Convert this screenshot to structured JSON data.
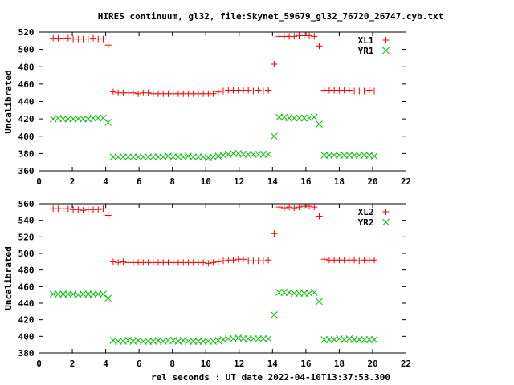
{
  "chart_data": [
    {
      "type": "scatter",
      "title": "HIRES continuum, gl32, file:Skynet_59679_gl32_76720_26747.cyb.txt",
      "xlabel": "",
      "ylabel": "Uncalibrated",
      "xlim": [
        0,
        22
      ],
      "ylim": [
        360,
        520
      ],
      "xticks": [
        0,
        2,
        4,
        6,
        8,
        10,
        12,
        14,
        16,
        18,
        20,
        22
      ],
      "yticks": [
        360,
        380,
        400,
        420,
        440,
        460,
        480,
        500,
        520
      ],
      "legend_position": "top-right",
      "x": [
        0.85,
        1.15,
        1.45,
        1.75,
        2.05,
        2.35,
        2.65,
        2.95,
        3.25,
        3.55,
        3.85,
        4.15,
        4.45,
        4.75,
        5.05,
        5.35,
        5.65,
        5.95,
        6.25,
        6.55,
        6.85,
        7.15,
        7.45,
        7.75,
        8.05,
        8.35,
        8.65,
        8.95,
        9.25,
        9.55,
        9.85,
        10.15,
        10.45,
        10.75,
        11.05,
        11.35,
        11.65,
        11.95,
        12.25,
        12.55,
        12.85,
        13.15,
        13.45,
        13.75,
        14.1,
        14.4,
        14.7,
        15.0,
        15.3,
        15.6,
        15.9,
        16.2,
        16.5,
        16.8,
        17.1,
        17.4,
        17.7,
        18.0,
        18.3,
        18.6,
        18.9,
        19.2,
        19.5,
        19.8,
        20.1
      ],
      "series": [
        {
          "name": "XL1",
          "marker": "plus",
          "color": "#ff0000",
          "values": [
            513,
            513,
            513,
            513,
            512,
            512,
            512,
            512,
            513,
            512,
            512,
            505,
            451,
            450,
            450,
            450,
            450,
            449,
            450,
            450,
            449,
            449,
            449,
            449,
            449,
            449,
            449,
            449,
            449,
            449,
            449,
            449,
            449,
            451,
            452,
            453,
            453,
            453,
            453,
            453,
            452,
            453,
            452,
            453,
            483,
            515,
            515,
            515,
            515,
            516,
            516,
            516,
            515,
            504,
            453,
            453,
            453,
            453,
            453,
            453,
            452,
            452,
            452,
            453,
            452
          ]
        },
        {
          "name": "YR1",
          "marker": "cross",
          "color": "#00c000",
          "values": [
            420,
            421,
            420,
            420,
            420,
            420,
            420,
            420,
            421,
            421,
            421,
            416,
            376,
            376,
            376,
            376,
            376,
            376,
            376,
            376,
            376,
            376,
            376,
            377,
            376,
            376,
            376,
            377,
            376,
            376,
            376,
            375,
            376,
            377,
            378,
            379,
            380,
            380,
            379,
            379,
            379,
            379,
            379,
            379,
            400,
            422,
            422,
            421,
            421,
            421,
            421,
            421,
            422,
            414,
            378,
            378,
            378,
            378,
            378,
            378,
            378,
            378,
            378,
            378,
            377
          ]
        }
      ]
    },
    {
      "type": "scatter",
      "title": "",
      "xlabel": "rel seconds : UT date 2022-04-10T13:37:53.300",
      "ylabel": "Uncalibrated",
      "xlim": [
        0,
        22
      ],
      "ylim": [
        380,
        560
      ],
      "xticks": [
        0,
        2,
        4,
        6,
        8,
        10,
        12,
        14,
        16,
        18,
        20,
        22
      ],
      "yticks": [
        380,
        400,
        420,
        440,
        460,
        480,
        500,
        520,
        540,
        560
      ],
      "legend_position": "top-right",
      "x": [
        0.85,
        1.15,
        1.45,
        1.75,
        2.05,
        2.35,
        2.65,
        2.95,
        3.25,
        3.55,
        3.85,
        4.15,
        4.45,
        4.75,
        5.05,
        5.35,
        5.65,
        5.95,
        6.25,
        6.55,
        6.85,
        7.15,
        7.45,
        7.75,
        8.05,
        8.35,
        8.65,
        8.95,
        9.25,
        9.55,
        9.85,
        10.15,
        10.45,
        10.75,
        11.05,
        11.35,
        11.65,
        11.95,
        12.25,
        12.55,
        12.85,
        13.15,
        13.45,
        13.75,
        14.1,
        14.4,
        14.7,
        15.0,
        15.3,
        15.6,
        15.9,
        16.2,
        16.5,
        16.8,
        17.1,
        17.4,
        17.7,
        18.0,
        18.3,
        18.6,
        18.9,
        19.2,
        19.5,
        19.8,
        20.1
      ],
      "series": [
        {
          "name": "XL2",
          "marker": "plus",
          "color": "#ff0000",
          "values": [
            554,
            554,
            554,
            554,
            553,
            553,
            552,
            553,
            553,
            553,
            554,
            546,
            490,
            489,
            490,
            489,
            489,
            489,
            489,
            489,
            489,
            489,
            489,
            489,
            489,
            489,
            489,
            489,
            489,
            489,
            489,
            488,
            489,
            490,
            491,
            492,
            492,
            493,
            493,
            491,
            491,
            491,
            491,
            492,
            524,
            556,
            555,
            556,
            555,
            556,
            557,
            557,
            556,
            545,
            493,
            492,
            492,
            492,
            492,
            492,
            492,
            491,
            492,
            492,
            492
          ]
        },
        {
          "name": "YR2",
          "marker": "cross",
          "color": "#00c000",
          "values": [
            451,
            451,
            451,
            451,
            451,
            450,
            451,
            451,
            451,
            451,
            451,
            446,
            395,
            394,
            394,
            395,
            394,
            395,
            394,
            394,
            394,
            395,
            394,
            395,
            395,
            394,
            395,
            394,
            394,
            394,
            394,
            394,
            394,
            395,
            396,
            397,
            397,
            398,
            397,
            397,
            397,
            397,
            397,
            397,
            426,
            453,
            453,
            453,
            452,
            452,
            452,
            452,
            453,
            442,
            396,
            396,
            396,
            397,
            396,
            397,
            396,
            396,
            396,
            396,
            396
          ]
        }
      ]
    }
  ]
}
